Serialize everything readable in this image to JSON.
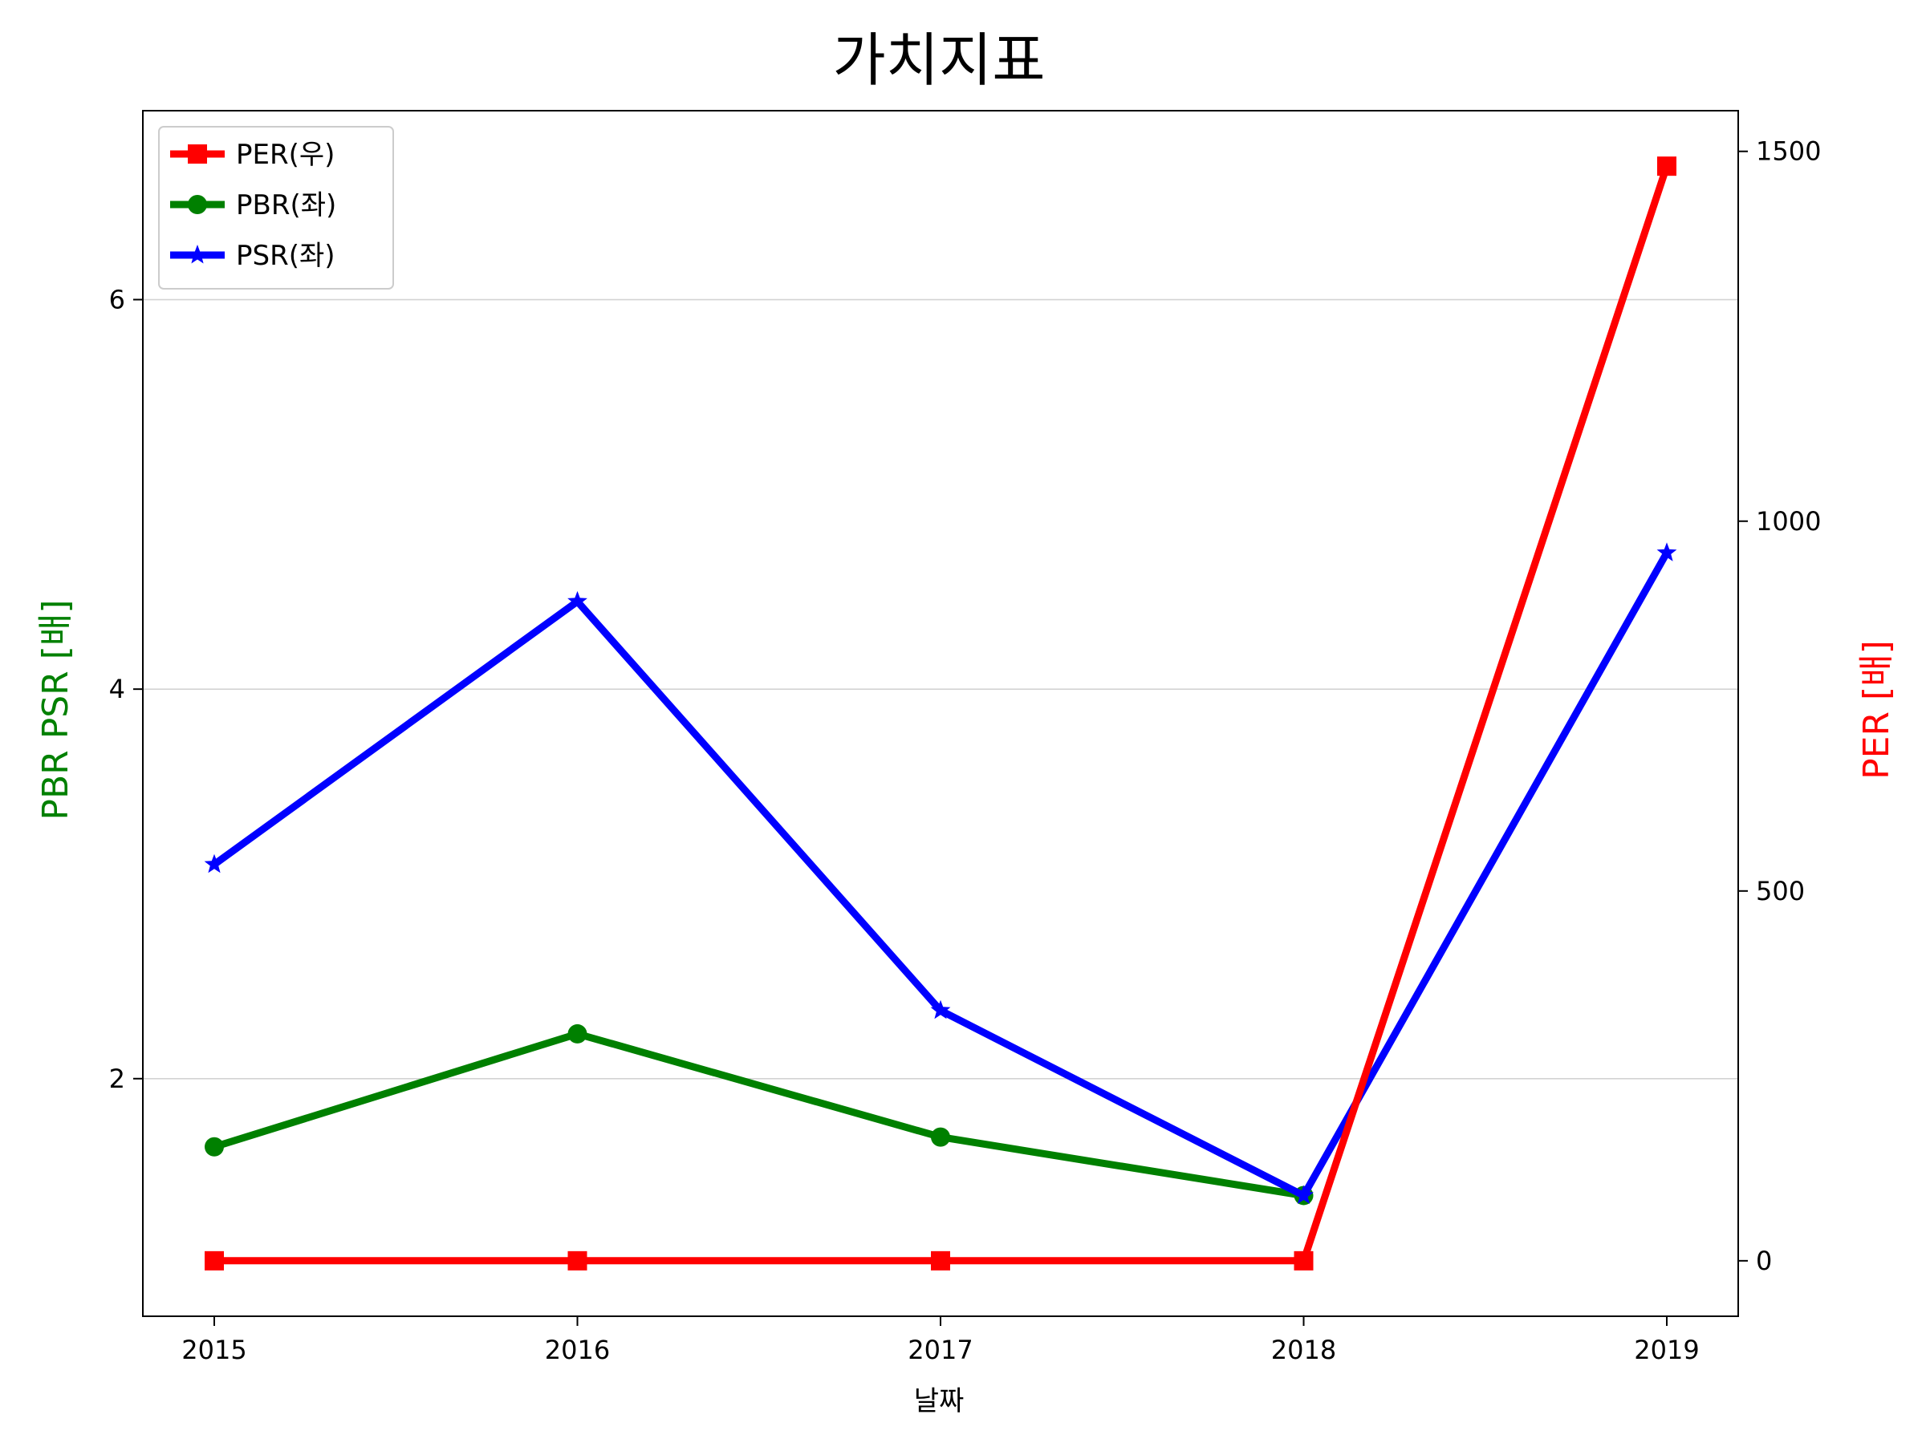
{
  "chart_data": {
    "type": "line",
    "title": "가치지표",
    "xlabel": "날짜",
    "ylabel_left": "PBR PSR [배]",
    "ylabel_right": "PER [배]",
    "categories": [
      "2015",
      "2016",
      "2017",
      "2018",
      "2019"
    ],
    "x_ticks": [
      "2015",
      "2016",
      "2017",
      "2018",
      "2019"
    ],
    "y_left_ticks": [
      2,
      4,
      6
    ],
    "y_left_ticks_text": [
      "2",
      "4",
      "6"
    ],
    "y_left_range": [
      0.78,
      6.97
    ],
    "y_right_ticks": [
      0,
      500,
      1000,
      1500
    ],
    "y_right_ticks_text": [
      "0",
      "500",
      "1000",
      "1500"
    ],
    "y_right_range": [
      -75,
      1555
    ],
    "grid": "horizontal (left axis)",
    "legend_position": "top-left",
    "series": [
      {
        "name": "PER(우)",
        "axis": "right",
        "color": "#ff0000",
        "marker": "square",
        "values": [
          0,
          0,
          0,
          0,
          1480
        ]
      },
      {
        "name": "PBR(좌)",
        "axis": "left",
        "color": "#008000",
        "marker": "circle",
        "values": [
          1.65,
          2.23,
          1.7,
          1.4,
          null
        ]
      },
      {
        "name": "PSR(좌)",
        "axis": "left",
        "color": "#0000ff",
        "marker": "star",
        "values": [
          3.1,
          4.45,
          2.35,
          1.4,
          4.7
        ]
      }
    ]
  }
}
